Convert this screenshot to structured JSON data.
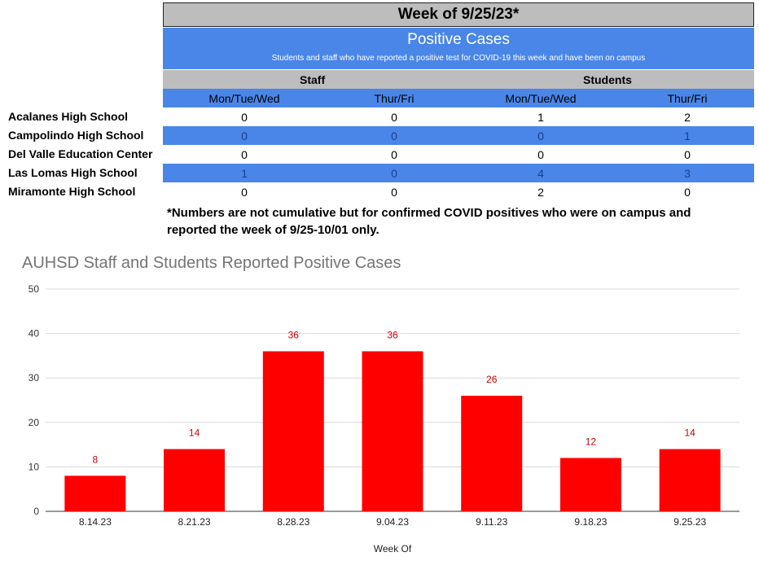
{
  "table": {
    "week_title": "Week of 9/25/23*",
    "header_title": "Positive Cases",
    "header_subtitle": "Students and staff who have reported a positive test for COVID-19 this week and have been on campus",
    "groups": [
      "Staff",
      "Students"
    ],
    "subheaders": [
      "Mon/Tue/Wed",
      "Thur/Fri",
      "Mon/Tue/Wed",
      "Thur/Fri"
    ],
    "rows": [
      {
        "school": "Acalanes High School",
        "values": [
          "0",
          "0",
          "1",
          "2"
        ]
      },
      {
        "school": "Campolindo High School",
        "values": [
          "0",
          "0",
          "0",
          "1"
        ]
      },
      {
        "school": "Del Valle Education Center",
        "values": [
          "0",
          "0",
          "0",
          "0"
        ]
      },
      {
        "school": "Las Lomas High School",
        "values": [
          "1",
          "0",
          "4",
          "3"
        ]
      },
      {
        "school": "Miramonte High School",
        "values": [
          "0",
          "0",
          "2",
          "0"
        ]
      }
    ],
    "note_line1": "*Numbers are not cumulative but for confirmed COVID positives who were on campus and",
    "note_line2": "reported the week of 9/25-10/01 only."
  },
  "chart_data": {
    "type": "bar",
    "title": "AUHSD Staff and Students Reported Positive Cases",
    "xlabel": "Week Of",
    "ylabel": "",
    "categories": [
      "8.14.23",
      "8.21.23",
      "8.28.23",
      "9.04.23",
      "9.11.23",
      "9.18.23",
      "9.25.23"
    ],
    "values": [
      8,
      14,
      36,
      36,
      26,
      12,
      14
    ],
    "ylim": [
      0,
      50
    ],
    "yticks": [
      0,
      10,
      20,
      30,
      40,
      50
    ],
    "grid": true,
    "bar_color": "#ff0000",
    "label_color": "#cc0000"
  },
  "colors": {
    "header_blue": "#4a86e8",
    "header_gray": "#bdbdbd"
  }
}
